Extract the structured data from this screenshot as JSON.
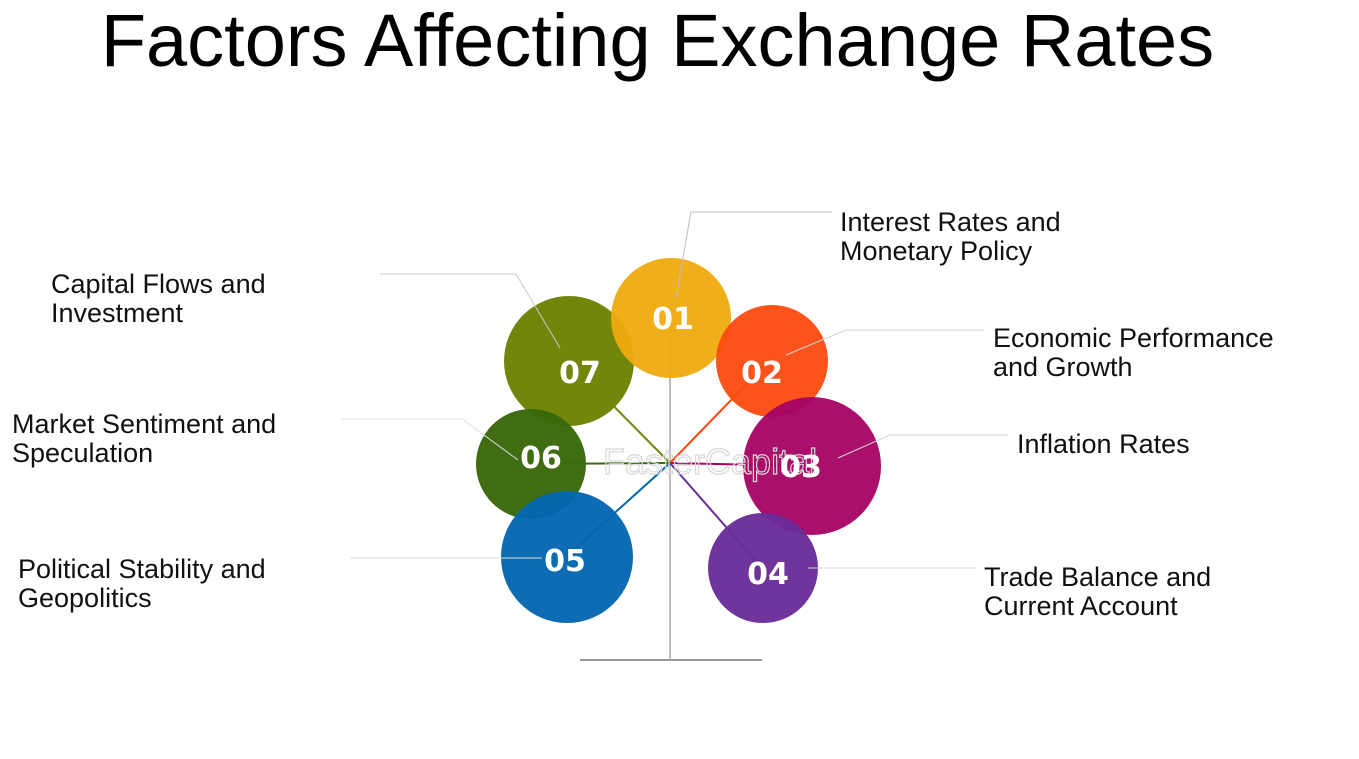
{
  "title": "Factors Affecting Exchange Rates",
  "watermark": "FasterCapital",
  "factors": [
    {
      "number": "01",
      "lines": [
        "Interest Rates and",
        "Monetary Policy"
      ],
      "color": "#EFAA0E"
    },
    {
      "number": "02",
      "lines": [
        "Economic Performance",
        "and Growth"
      ],
      "color": "#FB4A0F"
    },
    {
      "number": "03",
      "lines": [
        "Inflation Rates"
      ],
      "color": "#A50565"
    },
    {
      "number": "04",
      "lines": [
        "Trade Balance and",
        "Current Account"
      ],
      "color": "#6A2D98"
    },
    {
      "number": "05",
      "lines": [
        "Political Stability and",
        "Geopolitics"
      ],
      "color": "#0366B0"
    },
    {
      "number": "06",
      "lines": [
        "Market Sentiment and",
        "Speculation"
      ],
      "color": "#3A680A"
    },
    {
      "number": "07",
      "lines": [
        "Capital Flows and",
        "Investment"
      ],
      "color": "#71870B"
    }
  ]
}
